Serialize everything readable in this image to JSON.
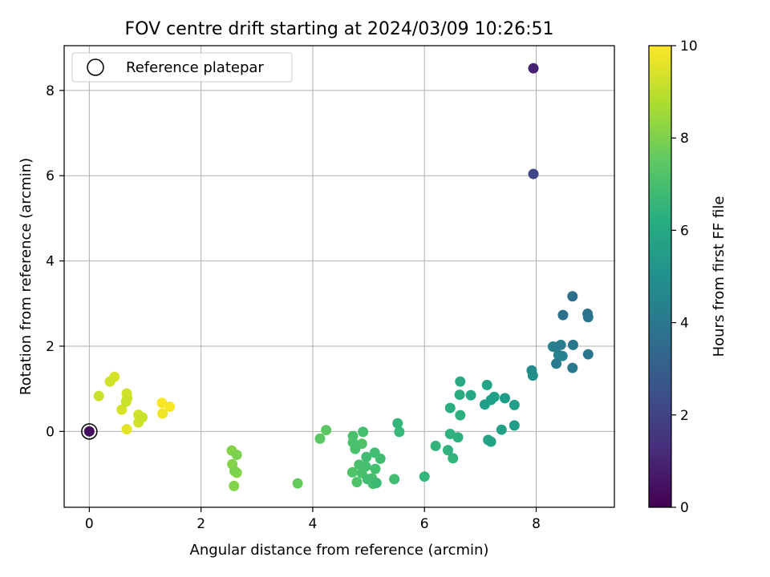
{
  "chart_data": {
    "type": "scatter",
    "title": "FOV centre drift starting at 2024/03/09 10:26:51",
    "xlabel": "Angular distance from reference (arcmin)",
    "ylabel": "Rotation from reference (arcmin)",
    "xlim": [
      -0.45,
      9.4
    ],
    "ylim": [
      -1.78,
      9.05
    ],
    "xticks": [
      0,
      2,
      4,
      6,
      8
    ],
    "yticks": [
      0,
      2,
      4,
      6,
      8
    ],
    "grid": true,
    "legend": {
      "placement": "upper-left",
      "entries": [
        {
          "label": "Reference platepar",
          "marker": "open-circle"
        }
      ]
    },
    "reference_point": {
      "x": 0,
      "y": 0
    },
    "colorbar": {
      "label": "Hours from first FF file",
      "range": [
        0,
        10
      ],
      "ticks": [
        0,
        2,
        4,
        6,
        8,
        10
      ],
      "colormap": "viridis"
    },
    "points": [
      {
        "x": 0.0,
        "y": 0.0,
        "c": 0.3
      },
      {
        "x": 7.95,
        "y": 8.52,
        "c": 0.9
      },
      {
        "x": 7.95,
        "y": 6.04,
        "c": 2.1
      },
      {
        "x": 8.65,
        "y": 3.17,
        "c": 3.6
      },
      {
        "x": 8.48,
        "y": 2.73,
        "c": 3.7
      },
      {
        "x": 8.92,
        "y": 2.76,
        "c": 3.8
      },
      {
        "x": 8.93,
        "y": 2.68,
        "c": 3.9
      },
      {
        "x": 8.66,
        "y": 2.03,
        "c": 4.0
      },
      {
        "x": 8.44,
        "y": 2.03,
        "c": 4.2
      },
      {
        "x": 8.93,
        "y": 1.81,
        "c": 3.9
      },
      {
        "x": 8.34,
        "y": 1.98,
        "c": 4.3
      },
      {
        "x": 8.4,
        "y": 1.79,
        "c": 4.4
      },
      {
        "x": 8.47,
        "y": 1.77,
        "c": 4.5
      },
      {
        "x": 8.36,
        "y": 1.59,
        "c": 4.1
      },
      {
        "x": 8.65,
        "y": 1.49,
        "c": 4.0
      },
      {
        "x": 8.3,
        "y": 1.99,
        "c": 4.6
      },
      {
        "x": 7.92,
        "y": 1.43,
        "c": 4.9
      },
      {
        "x": 7.94,
        "y": 1.31,
        "c": 5.0
      },
      {
        "x": 6.64,
        "y": 1.17,
        "c": 6.0
      },
      {
        "x": 7.12,
        "y": 1.09,
        "c": 5.8
      },
      {
        "x": 6.63,
        "y": 0.86,
        "c": 6.1
      },
      {
        "x": 6.83,
        "y": 0.85,
        "c": 5.9
      },
      {
        "x": 7.25,
        "y": 0.81,
        "c": 5.7
      },
      {
        "x": 7.19,
        "y": 0.74,
        "c": 5.6
      },
      {
        "x": 7.44,
        "y": 0.78,
        "c": 5.5
      },
      {
        "x": 7.08,
        "y": 0.63,
        "c": 5.6
      },
      {
        "x": 7.61,
        "y": 0.62,
        "c": 5.6
      },
      {
        "x": 6.46,
        "y": 0.55,
        "c": 6.2
      },
      {
        "x": 6.64,
        "y": 0.38,
        "c": 6.3
      },
      {
        "x": 7.61,
        "y": 0.14,
        "c": 5.5
      },
      {
        "x": 7.38,
        "y": 0.04,
        "c": 5.7
      },
      {
        "x": 6.46,
        "y": -0.06,
        "c": 6.4
      },
      {
        "x": 6.6,
        "y": -0.14,
        "c": 6.3
      },
      {
        "x": 7.14,
        "y": -0.2,
        "c": 5.8
      },
      {
        "x": 7.19,
        "y": -0.24,
        "c": 5.7
      },
      {
        "x": 6.2,
        "y": -0.34,
        "c": 6.5
      },
      {
        "x": 6.42,
        "y": -0.44,
        "c": 6.4
      },
      {
        "x": 6.51,
        "y": -0.63,
        "c": 6.5
      },
      {
        "x": 5.52,
        "y": 0.19,
        "c": 6.6
      },
      {
        "x": 5.55,
        "y": -0.01,
        "c": 6.7
      },
      {
        "x": 6.0,
        "y": -1.06,
        "c": 6.6
      },
      {
        "x": 5.46,
        "y": -1.12,
        "c": 6.9
      },
      {
        "x": 4.24,
        "y": 0.03,
        "c": 7.4
      },
      {
        "x": 4.13,
        "y": -0.17,
        "c": 7.4
      },
      {
        "x": 4.72,
        "y": -0.11,
        "c": 7.1
      },
      {
        "x": 4.9,
        "y": -0.01,
        "c": 7.0
      },
      {
        "x": 4.72,
        "y": -0.26,
        "c": 7.1
      },
      {
        "x": 4.88,
        "y": -0.29,
        "c": 7.2
      },
      {
        "x": 4.76,
        "y": -0.41,
        "c": 7.1
      },
      {
        "x": 4.96,
        "y": -0.6,
        "c": 6.9
      },
      {
        "x": 5.11,
        "y": -0.5,
        "c": 6.9
      },
      {
        "x": 5.21,
        "y": -0.64,
        "c": 6.9
      },
      {
        "x": 4.83,
        "y": -0.78,
        "c": 7.1
      },
      {
        "x": 4.95,
        "y": -0.82,
        "c": 7.0
      },
      {
        "x": 5.12,
        "y": -0.88,
        "c": 7.0
      },
      {
        "x": 4.71,
        "y": -0.96,
        "c": 7.2
      },
      {
        "x": 4.88,
        "y": -0.98,
        "c": 7.1
      },
      {
        "x": 4.98,
        "y": -1.12,
        "c": 6.9
      },
      {
        "x": 5.06,
        "y": -1.1,
        "c": 7.0
      },
      {
        "x": 4.79,
        "y": -1.19,
        "c": 7.2
      },
      {
        "x": 5.08,
        "y": -1.23,
        "c": 7.0
      },
      {
        "x": 5.14,
        "y": -1.21,
        "c": 6.8
      },
      {
        "x": 3.73,
        "y": -1.22,
        "c": 7.6
      },
      {
        "x": 2.55,
        "y": -0.45,
        "c": 8.1
      },
      {
        "x": 2.64,
        "y": -0.55,
        "c": 8.0
      },
      {
        "x": 2.56,
        "y": -0.77,
        "c": 8.1
      },
      {
        "x": 2.6,
        "y": -0.93,
        "c": 8.0
      },
      {
        "x": 2.64,
        "y": -0.97,
        "c": 8.1
      },
      {
        "x": 2.59,
        "y": -1.28,
        "c": 8.1
      },
      {
        "x": 0.17,
        "y": 0.83,
        "c": 9.2
      },
      {
        "x": 0.37,
        "y": 1.17,
        "c": 9.3
      },
      {
        "x": 0.45,
        "y": 1.28,
        "c": 9.4
      },
      {
        "x": 0.67,
        "y": 0.89,
        "c": 9.3
      },
      {
        "x": 0.68,
        "y": 0.78,
        "c": 9.3
      },
      {
        "x": 0.66,
        "y": 0.7,
        "c": 9.2
      },
      {
        "x": 0.58,
        "y": 0.51,
        "c": 9.4
      },
      {
        "x": 0.67,
        "y": 0.05,
        "c": 9.6
      },
      {
        "x": 0.88,
        "y": 0.39,
        "c": 9.3
      },
      {
        "x": 0.95,
        "y": 0.33,
        "c": 9.2
      },
      {
        "x": 0.88,
        "y": 0.21,
        "c": 9.3
      },
      {
        "x": 1.3,
        "y": 0.67,
        "c": 9.9
      },
      {
        "x": 1.44,
        "y": 0.58,
        "c": 9.9
      },
      {
        "x": 1.31,
        "y": 0.42,
        "c": 9.8
      }
    ]
  }
}
